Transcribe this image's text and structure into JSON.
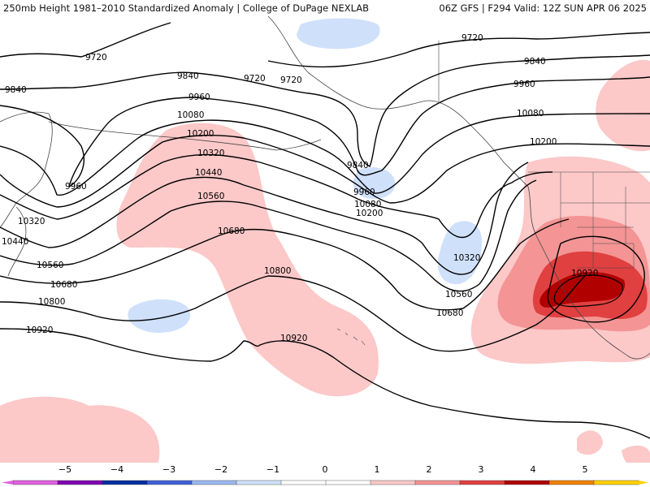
{
  "header": {
    "title": "250mb Height 1981–2010 Standardized Anomaly | College of DuPage NEXLAB",
    "run_info": "06Z GFS | F294 Valid: 12Z SUN APR 06 2025"
  },
  "contour_labels": [
    "9720",
    "9720",
    "9720",
    "9720",
    "9840",
    "9840",
    "9840",
    "9840",
    "9960",
    "9960",
    "9960",
    "9960",
    "10080",
    "10080",
    "10080",
    "10200",
    "10200",
    "10200",
    "10320",
    "10320",
    "10320",
    "10440",
    "10440",
    "10560",
    "10560",
    "10560",
    "10680",
    "10680",
    "10680",
    "10800",
    "10800",
    "10920",
    "10920",
    "10920"
  ],
  "legend": {
    "ticks": [
      "−5",
      "−4",
      "−3",
      "−2",
      "−1",
      "0",
      "1",
      "2",
      "3",
      "4",
      "5"
    ],
    "colors": [
      "#e060e0",
      "#8000b0",
      "#0030a0",
      "#4060d8",
      "#9ab8f0",
      "#cfe0fa",
      "#ffffff",
      "#ffffff",
      "#fcc8c8",
      "#f49494",
      "#e04040",
      "#b00000",
      "#f08000",
      "#ffd000"
    ]
  }
}
